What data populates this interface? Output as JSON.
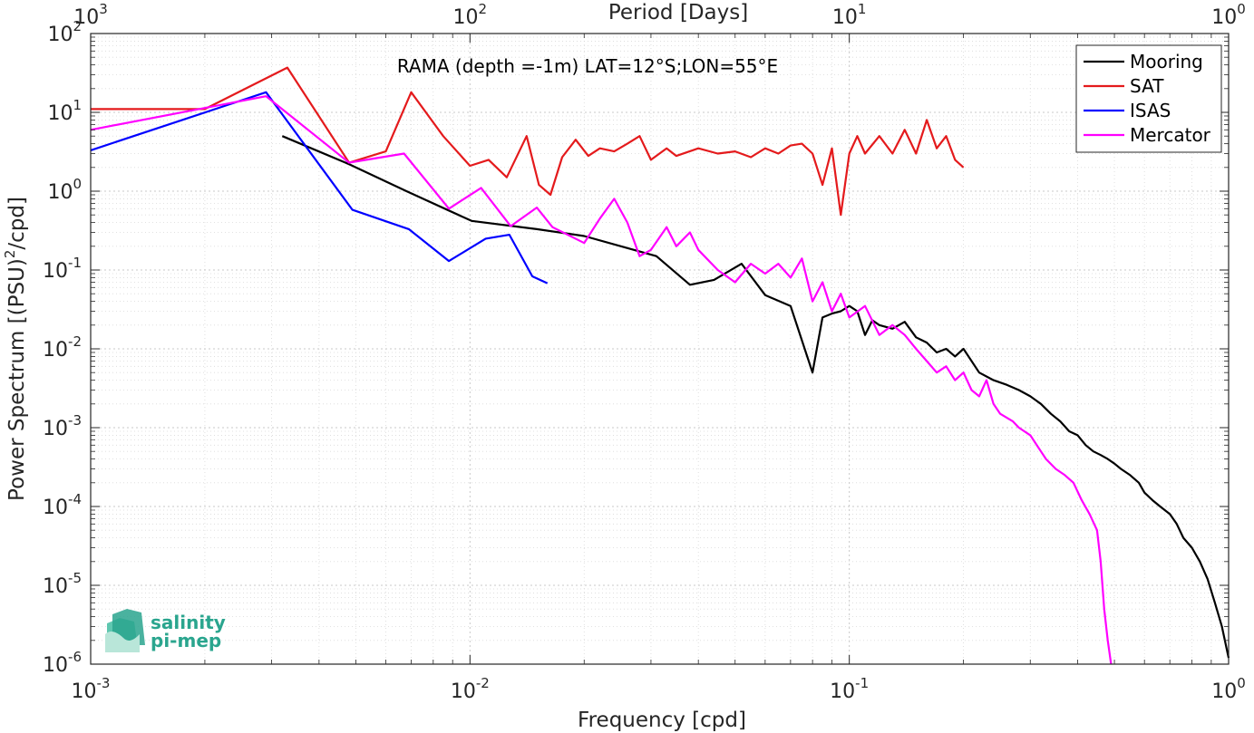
{
  "chart_data": {
    "type": "line",
    "title": "RAMA (depth =-1m) LAT=12°S;LON=55°E",
    "xlabel": "Frequency [cpd]",
    "ylabel": "Power Spectrum [(PSU)",
    "ylabel_exp": "2",
    "ylabel_suffix": "/cpd]",
    "top_xlabel": "Period [Days]",
    "x_scale": "log",
    "y_scale": "log",
    "xlim": [
      0.001,
      1
    ],
    "ylim": [
      1e-06,
      100
    ],
    "x_ticks": [
      {
        "base": "10",
        "exp": "-3",
        "value": 0.001
      },
      {
        "base": "10",
        "exp": "-2",
        "value": 0.01
      },
      {
        "base": "10",
        "exp": "-1",
        "value": 0.1
      },
      {
        "base": "10",
        "exp": "0",
        "value": 1
      }
    ],
    "top_x_ticks": [
      {
        "base": "10",
        "exp": "3",
        "value": 0.001
      },
      {
        "base": "10",
        "exp": "2",
        "value": 0.01
      },
      {
        "base": "10",
        "exp": "1",
        "value": 0.1
      },
      {
        "base": "10",
        "exp": "0",
        "value": 1
      }
    ],
    "y_ticks": [
      {
        "base": "10",
        "exp": "2",
        "value": 100
      },
      {
        "base": "10",
        "exp": "1",
        "value": 10
      },
      {
        "base": "10",
        "exp": "0",
        "value": 1
      },
      {
        "base": "10",
        "exp": "-1",
        "value": 0.1
      },
      {
        "base": "10",
        "exp": "-2",
        "value": 0.01
      },
      {
        "base": "10",
        "exp": "-3",
        "value": 0.001
      },
      {
        "base": "10",
        "exp": "-4",
        "value": 0.0001
      },
      {
        "base": "10",
        "exp": "-5",
        "value": 1e-05
      },
      {
        "base": "10",
        "exp": "-6",
        "value": 1e-06
      }
    ],
    "grid": true,
    "legend_position": "top-right",
    "series": [
      {
        "name": "Mooring",
        "color": "#000000",
        "points": [
          [
            0.0032,
            5.0
          ],
          [
            0.0048,
            2.2
          ],
          [
            0.0068,
            1.0
          ],
          [
            0.0101,
            0.42
          ],
          [
            0.015,
            0.33
          ],
          [
            0.02,
            0.27
          ],
          [
            0.025,
            0.2
          ],
          [
            0.031,
            0.15
          ],
          [
            0.038,
            0.065
          ],
          [
            0.044,
            0.075
          ],
          [
            0.052,
            0.12
          ],
          [
            0.06,
            0.048
          ],
          [
            0.07,
            0.035
          ],
          [
            0.08,
            0.005
          ],
          [
            0.085,
            0.025
          ],
          [
            0.09,
            0.028
          ],
          [
            0.095,
            0.03
          ],
          [
            0.1,
            0.035
          ],
          [
            0.105,
            0.03
          ],
          [
            0.11,
            0.015
          ],
          [
            0.115,
            0.023
          ],
          [
            0.12,
            0.02
          ],
          [
            0.13,
            0.018
          ],
          [
            0.14,
            0.022
          ],
          [
            0.15,
            0.014
          ],
          [
            0.16,
            0.012
          ],
          [
            0.17,
            0.009
          ],
          [
            0.18,
            0.01
          ],
          [
            0.19,
            0.008
          ],
          [
            0.2,
            0.01
          ],
          [
            0.22,
            0.005
          ],
          [
            0.24,
            0.004
          ],
          [
            0.26,
            0.0035
          ],
          [
            0.28,
            0.003
          ],
          [
            0.3,
            0.0025
          ],
          [
            0.32,
            0.002
          ],
          [
            0.34,
            0.0015
          ],
          [
            0.36,
            0.0012
          ],
          [
            0.38,
            0.0009
          ],
          [
            0.4,
            0.0008
          ],
          [
            0.42,
            0.0006
          ],
          [
            0.44,
            0.0005
          ],
          [
            0.46,
            0.00045
          ],
          [
            0.48,
            0.0004
          ],
          [
            0.5,
            0.00035
          ],
          [
            0.52,
            0.0003
          ],
          [
            0.55,
            0.00025
          ],
          [
            0.58,
            0.0002
          ],
          [
            0.6,
            0.00015
          ],
          [
            0.63,
            0.00012
          ],
          [
            0.66,
            0.0001
          ],
          [
            0.7,
            8e-05
          ],
          [
            0.73,
            6e-05
          ],
          [
            0.76,
            4e-05
          ],
          [
            0.8,
            3e-05
          ],
          [
            0.84,
            2e-05
          ],
          [
            0.88,
            1.2e-05
          ],
          [
            0.92,
            6e-06
          ],
          [
            0.96,
            3e-06
          ],
          [
            1.0,
            1.2e-06
          ]
        ]
      },
      {
        "name": "SAT",
        "color": "#e41a1c",
        "points": [
          [
            0.001,
            11
          ],
          [
            0.002,
            11
          ],
          [
            0.0033,
            37
          ],
          [
            0.0048,
            2.3
          ],
          [
            0.006,
            3.2
          ],
          [
            0.007,
            18
          ],
          [
            0.0085,
            5
          ],
          [
            0.01,
            2.1
          ],
          [
            0.0112,
            2.5
          ],
          [
            0.0125,
            1.5
          ],
          [
            0.0141,
            5
          ],
          [
            0.0152,
            1.2
          ],
          [
            0.0163,
            0.9
          ],
          [
            0.0175,
            2.7
          ],
          [
            0.019,
            4.5
          ],
          [
            0.0205,
            2.8
          ],
          [
            0.022,
            3.5
          ],
          [
            0.024,
            3.2
          ],
          [
            0.026,
            4
          ],
          [
            0.028,
            5
          ],
          [
            0.03,
            2.5
          ],
          [
            0.033,
            3.5
          ],
          [
            0.035,
            2.8
          ],
          [
            0.04,
            3.5
          ],
          [
            0.045,
            3.0
          ],
          [
            0.05,
            3.2
          ],
          [
            0.055,
            2.7
          ],
          [
            0.06,
            3.5
          ],
          [
            0.065,
            3.0
          ],
          [
            0.07,
            3.8
          ],
          [
            0.075,
            4.0
          ],
          [
            0.08,
            3.0
          ],
          [
            0.085,
            1.2
          ],
          [
            0.09,
            3.5
          ],
          [
            0.095,
            0.5
          ],
          [
            0.1,
            3.0
          ],
          [
            0.105,
            5.0
          ],
          [
            0.11,
            3.0
          ],
          [
            0.12,
            5.0
          ],
          [
            0.13,
            3.0
          ],
          [
            0.14,
            6.0
          ],
          [
            0.15,
            3.0
          ],
          [
            0.16,
            8.0
          ],
          [
            0.17,
            3.5
          ],
          [
            0.18,
            5.0
          ],
          [
            0.19,
            2.5
          ],
          [
            0.2,
            2.0
          ]
        ]
      },
      {
        "name": "ISAS",
        "color": "#0000ff",
        "points": [
          [
            0.001,
            3.3
          ],
          [
            0.0029,
            18
          ],
          [
            0.0049,
            0.58
          ],
          [
            0.0069,
            0.33
          ],
          [
            0.0088,
            0.13
          ],
          [
            0.011,
            0.25
          ],
          [
            0.0127,
            0.28
          ],
          [
            0.0146,
            0.083
          ],
          [
            0.016,
            0.068
          ]
        ]
      },
      {
        "name": "Mercator",
        "color": "#ff00ff",
        "points": [
          [
            0.001,
            6
          ],
          [
            0.0029,
            16
          ],
          [
            0.0048,
            2.3
          ],
          [
            0.0067,
            3.0
          ],
          [
            0.0088,
            0.6
          ],
          [
            0.0107,
            1.1
          ],
          [
            0.0128,
            0.36
          ],
          [
            0.015,
            0.62
          ],
          [
            0.0165,
            0.35
          ],
          [
            0.02,
            0.22
          ],
          [
            0.022,
            0.45
          ],
          [
            0.024,
            0.8
          ],
          [
            0.026,
            0.4
          ],
          [
            0.028,
            0.15
          ],
          [
            0.03,
            0.18
          ],
          [
            0.033,
            0.35
          ],
          [
            0.035,
            0.2
          ],
          [
            0.038,
            0.3
          ],
          [
            0.04,
            0.18
          ],
          [
            0.045,
            0.1
          ],
          [
            0.05,
            0.07
          ],
          [
            0.055,
            0.12
          ],
          [
            0.06,
            0.09
          ],
          [
            0.065,
            0.12
          ],
          [
            0.07,
            0.08
          ],
          [
            0.075,
            0.14
          ],
          [
            0.08,
            0.04
          ],
          [
            0.085,
            0.07
          ],
          [
            0.09,
            0.03
          ],
          [
            0.095,
            0.05
          ],
          [
            0.1,
            0.025
          ],
          [
            0.11,
            0.035
          ],
          [
            0.12,
            0.015
          ],
          [
            0.13,
            0.02
          ],
          [
            0.14,
            0.015
          ],
          [
            0.15,
            0.01
          ],
          [
            0.16,
            0.007
          ],
          [
            0.17,
            0.005
          ],
          [
            0.18,
            0.006
          ],
          [
            0.19,
            0.004
          ],
          [
            0.2,
            0.005
          ],
          [
            0.21,
            0.003
          ],
          [
            0.22,
            0.0025
          ],
          [
            0.23,
            0.004
          ],
          [
            0.24,
            0.002
          ],
          [
            0.25,
            0.0015
          ],
          [
            0.27,
            0.0012
          ],
          [
            0.28,
            0.001
          ],
          [
            0.3,
            0.0008
          ],
          [
            0.32,
            0.0005
          ],
          [
            0.33,
            0.0004
          ],
          [
            0.35,
            0.0003
          ],
          [
            0.37,
            0.00025
          ],
          [
            0.39,
            0.0002
          ],
          [
            0.41,
            0.00012
          ],
          [
            0.43,
            8e-05
          ],
          [
            0.45,
            5e-05
          ],
          [
            0.46,
            2e-05
          ],
          [
            0.47,
            5e-06
          ],
          [
            0.48,
            2e-06
          ],
          [
            0.49,
            1e-06
          ]
        ]
      }
    ]
  },
  "logo": {
    "line1": "salinity",
    "line2": "pi-mep",
    "color": "#2aa58e"
  }
}
